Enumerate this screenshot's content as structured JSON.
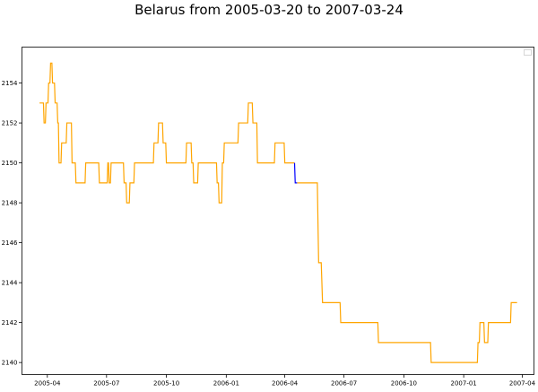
{
  "chart_data": {
    "type": "line",
    "title": "Belarus from 2005-03-20 to 2007-03-24",
    "xlabel": "",
    "ylabel": "",
    "x_ticks": [
      "2005-04",
      "2005-07",
      "2005-10",
      "2006-01",
      "2006-04",
      "2006-07",
      "2006-10",
      "2007-01",
      "2007-04"
    ],
    "y_ticks": [
      "2140",
      "2142",
      "2144",
      "2146",
      "2148",
      "2150",
      "2152",
      "2154"
    ],
    "xlim": [
      "2005-02-21",
      "2007-04-19"
    ],
    "ylim": [
      2139.4,
      2155.8
    ],
    "grid": false,
    "legend": "top-right, empty",
    "series": [
      {
        "color": "#ffa500",
        "points": [
          [
            "2005-03-20",
            2153
          ],
          [
            "2005-03-26",
            2153
          ],
          [
            "2005-03-27",
            2152
          ],
          [
            "2005-03-29",
            2152
          ],
          [
            "2005-03-30",
            2153
          ],
          [
            "2005-04-02",
            2153
          ],
          [
            "2005-04-03",
            2154
          ],
          [
            "2005-04-05",
            2154
          ],
          [
            "2005-04-06",
            2155
          ],
          [
            "2005-04-08",
            2155
          ],
          [
            "2005-04-09",
            2154
          ],
          [
            "2005-04-12",
            2154
          ],
          [
            "2005-04-13",
            2153
          ],
          [
            "2005-04-16",
            2153
          ],
          [
            "2005-04-17",
            2152
          ],
          [
            "2005-04-18",
            2152
          ],
          [
            "2005-04-19",
            2150
          ],
          [
            "2005-04-22",
            2150
          ],
          [
            "2005-04-23",
            2151
          ],
          [
            "2005-04-30",
            2151
          ],
          [
            "2005-05-01",
            2152
          ],
          [
            "2005-05-08",
            2152
          ],
          [
            "2005-05-09",
            2150
          ],
          [
            "2005-05-14",
            2150
          ],
          [
            "2005-05-15",
            2149
          ],
          [
            "2005-05-29",
            2149
          ],
          [
            "2005-05-30",
            2150
          ],
          [
            "2005-06-19",
            2150
          ],
          [
            "2005-06-20",
            2149
          ],
          [
            "2005-07-02",
            2149
          ],
          [
            "2005-07-03",
            2150
          ],
          [
            "2005-07-04",
            2150
          ],
          [
            "2005-07-05",
            2149
          ],
          [
            "2005-07-07",
            2149
          ],
          [
            "2005-07-08",
            2150
          ],
          [
            "2005-07-27",
            2150
          ],
          [
            "2005-07-28",
            2149
          ],
          [
            "2005-07-31",
            2149
          ],
          [
            "2005-08-01",
            2148
          ],
          [
            "2005-08-05",
            2148
          ],
          [
            "2005-08-06",
            2149
          ],
          [
            "2005-08-12",
            2149
          ],
          [
            "2005-08-13",
            2150
          ],
          [
            "2005-09-11",
            2150
          ],
          [
            "2005-09-12",
            2151
          ],
          [
            "2005-09-18",
            2151
          ],
          [
            "2005-09-19",
            2152
          ],
          [
            "2005-09-25",
            2152
          ],
          [
            "2005-09-26",
            2151
          ],
          [
            "2005-09-30",
            2151
          ],
          [
            "2005-10-01",
            2150
          ],
          [
            "2005-10-31",
            2150
          ],
          [
            "2005-11-01",
            2151
          ],
          [
            "2005-11-08",
            2151
          ],
          [
            "2005-11-09",
            2150
          ],
          [
            "2005-11-11",
            2150
          ],
          [
            "2005-11-12",
            2149
          ],
          [
            "2005-11-18",
            2149
          ],
          [
            "2005-11-19",
            2150
          ],
          [
            "2005-12-17",
            2150
          ],
          [
            "2005-12-18",
            2149
          ],
          [
            "2005-12-20",
            2149
          ],
          [
            "2005-12-21",
            2148
          ],
          [
            "2005-12-25",
            2148
          ],
          [
            "2005-12-26",
            2150
          ],
          [
            "2005-12-28",
            2150
          ],
          [
            "2005-12-29",
            2151
          ],
          [
            "2006-01-19",
            2151
          ],
          [
            "2006-01-20",
            2152
          ],
          [
            "2006-02-03",
            2152
          ],
          [
            "2006-02-04",
            2153
          ],
          [
            "2006-02-10",
            2153
          ],
          [
            "2006-02-11",
            2152
          ],
          [
            "2006-02-17",
            2152
          ],
          [
            "2006-02-18",
            2150
          ],
          [
            "2006-03-16",
            2150
          ],
          [
            "2006-03-17",
            2151
          ],
          [
            "2006-03-31",
            2151
          ],
          [
            "2006-04-01",
            2150
          ],
          [
            "2006-04-16",
            2150
          ]
        ]
      },
      {
        "color": "#0000ff",
        "points": [
          [
            "2006-04-16",
            2150
          ],
          [
            "2006-04-17",
            2149
          ],
          [
            "2006-04-20",
            2149
          ]
        ]
      },
      {
        "color": "#ffa500",
        "points": [
          [
            "2006-04-20",
            2149
          ],
          [
            "2006-05-21",
            2149
          ],
          [
            "2006-05-22",
            2147
          ],
          [
            "2006-05-23",
            2145
          ],
          [
            "2006-05-27",
            2145
          ],
          [
            "2006-05-29",
            2143
          ],
          [
            "2006-06-25",
            2143
          ],
          [
            "2006-06-26",
            2142
          ],
          [
            "2006-08-22",
            2142
          ],
          [
            "2006-08-23",
            2141
          ],
          [
            "2006-11-11",
            2141
          ],
          [
            "2006-11-12",
            2140
          ],
          [
            "2007-01-22",
            2140
          ],
          [
            "2007-01-23",
            2141
          ],
          [
            "2007-01-25",
            2141
          ],
          [
            "2007-01-26",
            2142
          ],
          [
            "2007-02-01",
            2142
          ],
          [
            "2007-02-02",
            2141
          ],
          [
            "2007-02-07",
            2141
          ],
          [
            "2007-02-08",
            2142
          ],
          [
            "2007-03-14",
            2142
          ],
          [
            "2007-03-15",
            2143
          ],
          [
            "2007-03-24",
            2143
          ]
        ]
      }
    ]
  }
}
